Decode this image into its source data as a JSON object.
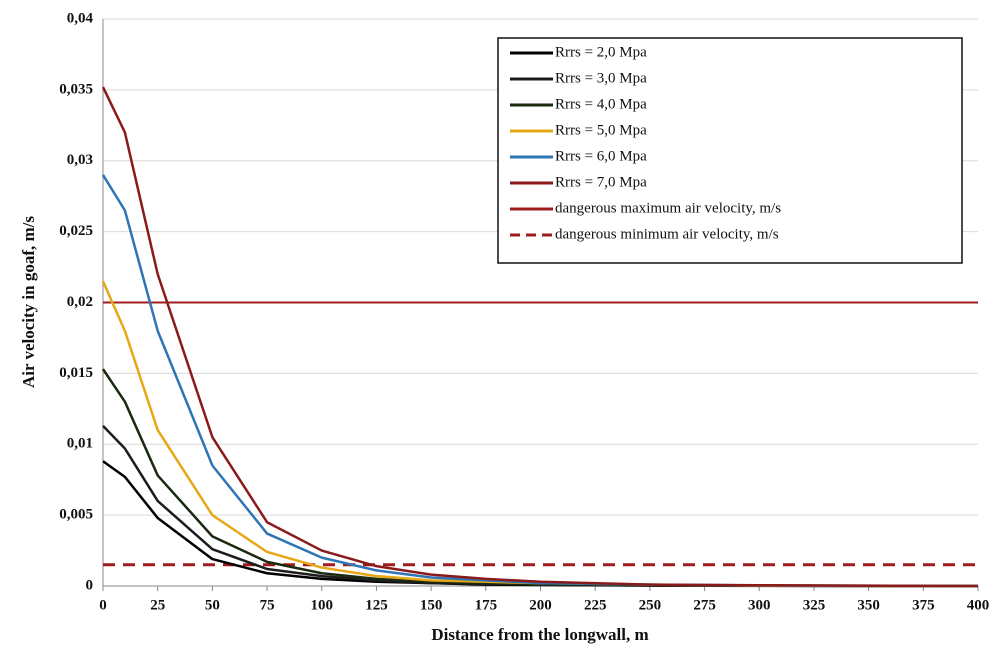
{
  "chart_data": {
    "type": "line",
    "xlabel": "Distance from the longwall, m",
    "ylabel": "Air velocity in goaf, m/s",
    "x": [
      0,
      10,
      25,
      50,
      75,
      100,
      125,
      150,
      175,
      200,
      250,
      300,
      400
    ],
    "series": [
      {
        "name": "Rrrs = 2,0 Mpa",
        "color": "#000000",
        "values": [
          0.0088,
          0.0077,
          0.0048,
          0.0019,
          0.0009,
          0.0005,
          0.0003,
          0.0002,
          0.0001,
          7e-05,
          3e-05,
          1e-05,
          0
        ]
      },
      {
        "name": "Rrrs = 3,0 Mpa",
        "color": "#1c1c1c",
        "values": [
          0.0113,
          0.0097,
          0.006,
          0.0026,
          0.0012,
          0.0007,
          0.0004,
          0.0002,
          0.00015,
          0.0001,
          4e-05,
          2e-05,
          0
        ]
      },
      {
        "name": "Rrrs = 4,0 Mpa",
        "color": "#1a2a10",
        "values": [
          0.0153,
          0.013,
          0.0078,
          0.0035,
          0.0017,
          0.0009,
          0.0005,
          0.0003,
          0.0002,
          0.0001,
          5e-05,
          2e-05,
          0
        ]
      },
      {
        "name": "Rrrs = 5,0 Mpa",
        "color": "#e6a817",
        "values": [
          0.0215,
          0.018,
          0.011,
          0.005,
          0.0024,
          0.0013,
          0.0007,
          0.0004,
          0.0003,
          0.0002,
          0.0001,
          3e-05,
          0
        ]
      },
      {
        "name": "Rrrs = 6,0 Mpa",
        "color": "#2e75b6",
        "values": [
          0.029,
          0.0265,
          0.018,
          0.0085,
          0.0037,
          0.002,
          0.0011,
          0.0006,
          0.0004,
          0.0002,
          0.0001,
          4e-05,
          0
        ]
      },
      {
        "name": "Rrrs = 7,0 Mpa",
        "color": "#8b1a1a",
        "values": [
          0.0352,
          0.032,
          0.022,
          0.0105,
          0.0045,
          0.0025,
          0.0014,
          0.0008,
          0.0005,
          0.0003,
          0.0001,
          5e-05,
          0
        ]
      }
    ],
    "reference_lines": [
      {
        "name": "dangerous maximum air velocity, m/s",
        "color": "#a01c1c",
        "value": 0.02,
        "dashed": false
      },
      {
        "name": "dangerous minimum air velocity, m/s",
        "color": "#a01c1c",
        "value": 0.0015,
        "dashed": true
      }
    ],
    "xlim": [
      0,
      400
    ],
    "xticks": [
      0,
      25,
      50,
      75,
      100,
      125,
      150,
      175,
      200,
      225,
      250,
      275,
      300,
      325,
      350,
      375,
      400
    ],
    "ylim": [
      0,
      0.04
    ],
    "yticks": [
      0,
      {
        "value": 0.005,
        "label": "0,005"
      },
      {
        "value": 0.01,
        "label": "0,01"
      },
      {
        "value": 0.015,
        "label": "0,015"
      },
      {
        "value": 0.02,
        "label": "0,02"
      },
      {
        "value": 0.025,
        "label": "0,025"
      },
      {
        "value": 0.03,
        "label": "0,03"
      },
      {
        "value": 0.035,
        "label": "0,035"
      },
      {
        "value": 0.04,
        "label": "0,04"
      }
    ],
    "grid": true,
    "legend": "upper right"
  }
}
